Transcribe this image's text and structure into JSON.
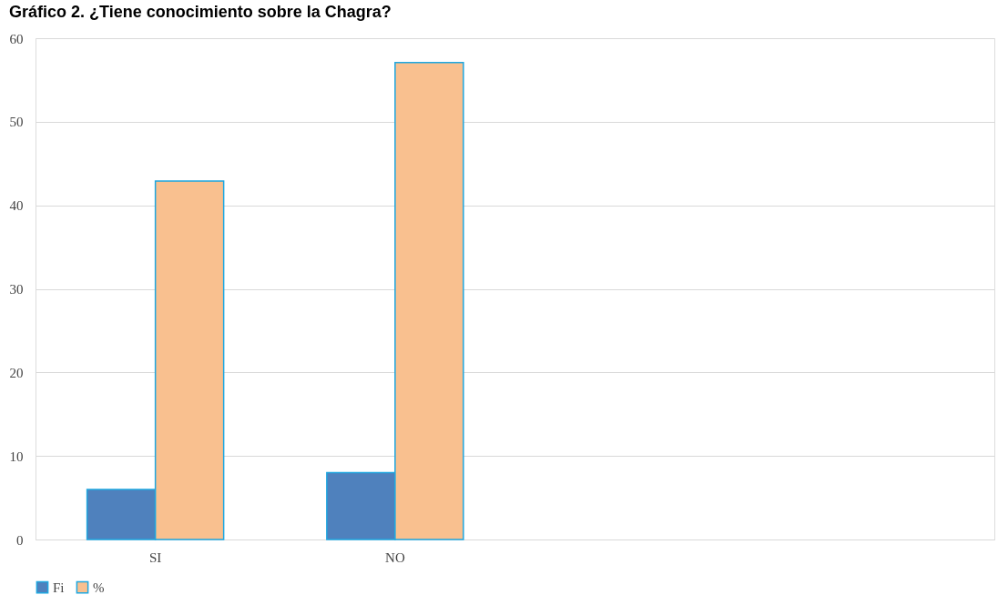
{
  "chart_data": {
    "type": "bar",
    "title": "Gráfico 2. ¿Tiene conocimiento sobre la Chagra?",
    "categories": [
      "SI",
      "NO",
      null,
      null
    ],
    "series": [
      {
        "name": "Fi",
        "color": "#4f81bd",
        "values": [
          6,
          8,
          null,
          null
        ]
      },
      {
        "name": "%",
        "color": "#f9c08f",
        "values": [
          42.9,
          57.1,
          null,
          null
        ]
      }
    ],
    "ylim": [
      0,
      60
    ],
    "yticks": [
      0,
      10,
      20,
      30,
      40,
      50,
      60
    ],
    "grid": "y",
    "legend": "bottom"
  }
}
